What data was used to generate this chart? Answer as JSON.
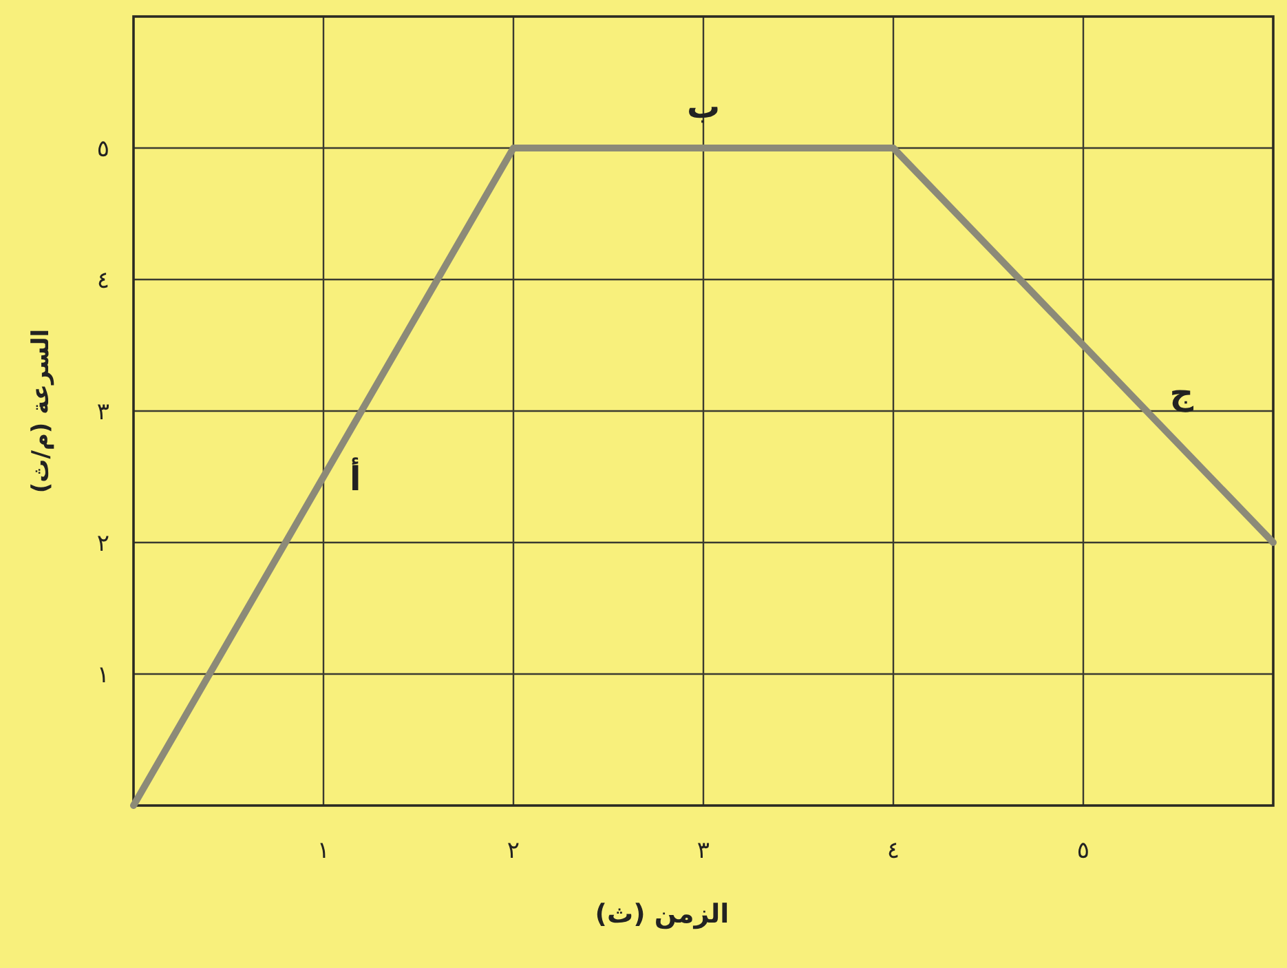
{
  "chart_data": {
    "type": "line",
    "xlabel": "الزمن (ث)",
    "ylabel": "السرعة (م/ث)",
    "x": [
      0,
      2,
      4,
      6
    ],
    "values": [
      0,
      5,
      5,
      2
    ],
    "color": "#8c8a78",
    "xlim": [
      0,
      6
    ],
    "ylim": [
      0,
      6
    ],
    "xticks": [
      {
        "value": 1,
        "label": "١"
      },
      {
        "value": 2,
        "label": "٢"
      },
      {
        "value": 3,
        "label": "٣"
      },
      {
        "value": 4,
        "label": "٤"
      },
      {
        "value": 5,
        "label": "٥"
      }
    ],
    "yticks": [
      {
        "value": 1,
        "label": "١"
      },
      {
        "value": 2,
        "label": "٢"
      },
      {
        "value": 3,
        "label": "٣"
      },
      {
        "value": 4,
        "label": "٤"
      },
      {
        "value": 5,
        "label": "٥"
      }
    ],
    "grid": true,
    "annotations": [
      {
        "text": "أ",
        "x": 0.95,
        "y": 2.4
      },
      {
        "text": "ب",
        "x": 3,
        "y": 5
      },
      {
        "text": "ج",
        "x": 5.3,
        "y": 3.05
      }
    ]
  }
}
